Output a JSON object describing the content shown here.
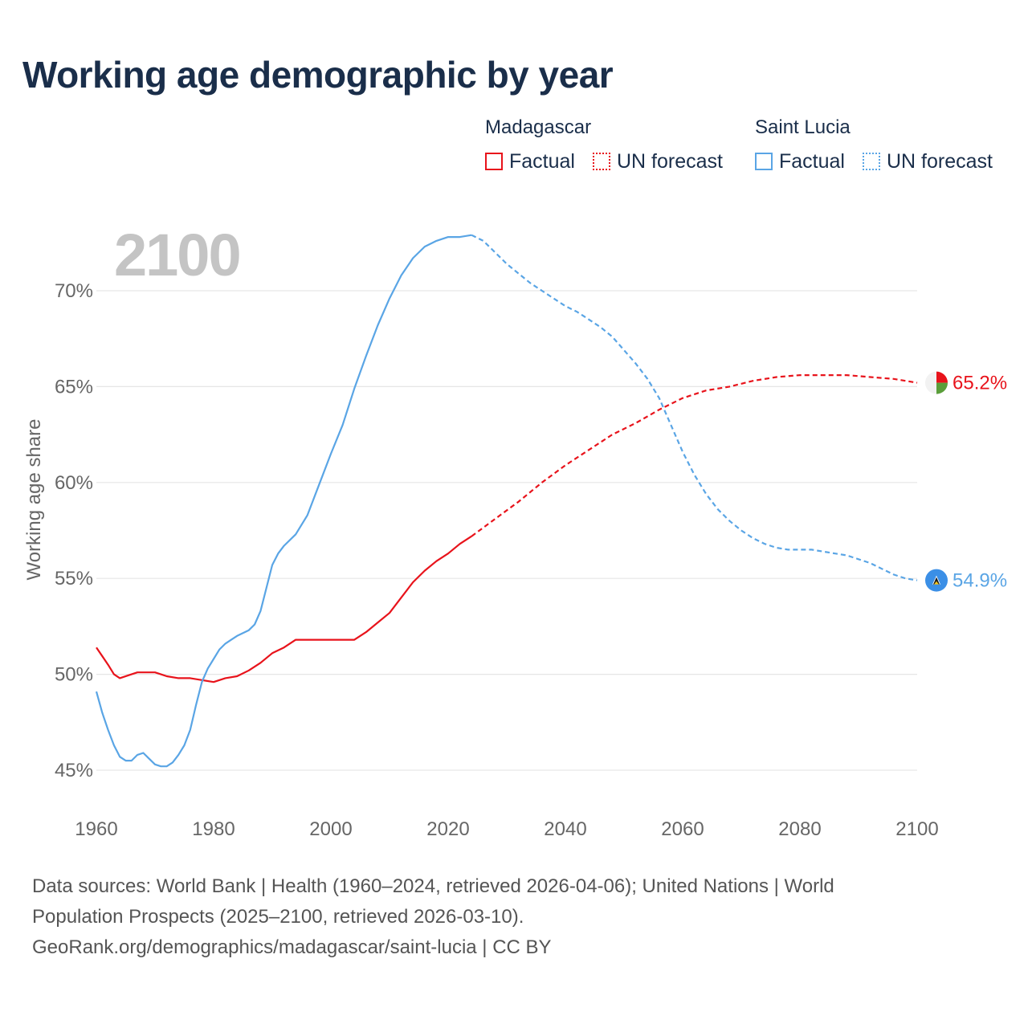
{
  "title": "Working age demographic by year",
  "legend": {
    "groups": [
      {
        "name": "Madagascar",
        "color": "#e8131b",
        "factual_label": "Factual",
        "forecast_label": "UN forecast"
      },
      {
        "name": "Saint Lucia",
        "color": "#5aa5e5",
        "factual_label": "Factual",
        "forecast_label": "UN forecast"
      }
    ]
  },
  "year_label": "2100",
  "chart_data": {
    "type": "line",
    "title": "Working age demographic by year",
    "xlabel": "",
    "ylabel": "Working age share",
    "xlim": [
      1960,
      2100
    ],
    "ylim": [
      45,
      72
    ],
    "x_ticks": [
      1960,
      1980,
      2000,
      2020,
      2040,
      2060,
      2080,
      2100
    ],
    "x_tick_labels": [
      "1960",
      "1980",
      "2000",
      "2020",
      "2040",
      "2060",
      "2080",
      "2100"
    ],
    "y_ticks": [
      45,
      50,
      55,
      60,
      65,
      70
    ],
    "y_tick_labels": [
      "45%",
      "50%",
      "55%",
      "60%",
      "65%",
      "70%"
    ],
    "forecast_start": 2024,
    "series": [
      {
        "name": "Madagascar",
        "color": "#e8131b",
        "end_label": "65.2%",
        "factual": {
          "x": [
            1960,
            1962,
            1963,
            1964,
            1966,
            1967,
            1970,
            1971,
            1972,
            1974,
            1976,
            1978,
            1980,
            1982,
            1984,
            1986,
            1988,
            1990,
            1992,
            1994,
            1996,
            1998,
            2000,
            2002,
            2004,
            2006,
            2008,
            2010,
            2012,
            2014,
            2016,
            2018,
            2020,
            2022,
            2024
          ],
          "y": [
            51.4,
            50.5,
            50.0,
            49.8,
            50.0,
            50.1,
            50.1,
            50.0,
            49.9,
            49.8,
            49.8,
            49.7,
            49.6,
            49.8,
            49.9,
            50.2,
            50.6,
            51.1,
            51.4,
            51.8,
            51.8,
            51.8,
            51.8,
            51.8,
            51.8,
            52.2,
            52.7,
            53.2,
            54.0,
            54.8,
            55.4,
            55.9,
            56.3,
            56.8,
            57.2
          ]
        },
        "forecast": {
          "x": [
            2024,
            2028,
            2032,
            2036,
            2040,
            2044,
            2048,
            2052,
            2056,
            2060,
            2064,
            2068,
            2072,
            2076,
            2080,
            2084,
            2088,
            2092,
            2096,
            2100
          ],
          "y": [
            57.2,
            58.1,
            59.0,
            60.0,
            60.9,
            61.7,
            62.5,
            63.1,
            63.8,
            64.4,
            64.8,
            65.0,
            65.3,
            65.5,
            65.6,
            65.6,
            65.6,
            65.5,
            65.4,
            65.2
          ]
        }
      },
      {
        "name": "Saint Lucia",
        "color": "#5aa5e5",
        "end_label": "54.9%",
        "factual": {
          "x": [
            1960,
            1961,
            1962,
            1963,
            1964,
            1965,
            1966,
            1967,
            1968,
            1969,
            1970,
            1971,
            1972,
            1973,
            1974,
            1975,
            1976,
            1977,
            1978,
            1979,
            1980,
            1981,
            1982,
            1983,
            1984,
            1986,
            1987,
            1988,
            1989,
            1990,
            1991,
            1992,
            1994,
            1996,
            1998,
            2000,
            2002,
            2004,
            2006,
            2008,
            2010,
            2012,
            2014,
            2016,
            2018,
            2020,
            2022,
            2024
          ],
          "y": [
            49.1,
            48.0,
            47.1,
            46.3,
            45.7,
            45.5,
            45.5,
            45.8,
            45.9,
            45.6,
            45.3,
            45.2,
            45.2,
            45.4,
            45.8,
            46.3,
            47.1,
            48.4,
            49.6,
            50.3,
            50.8,
            51.3,
            51.6,
            51.8,
            52.0,
            52.3,
            52.6,
            53.3,
            54.5,
            55.7,
            56.3,
            56.7,
            57.3,
            58.3,
            59.9,
            61.5,
            63.0,
            64.9,
            66.6,
            68.2,
            69.6,
            70.8,
            71.7,
            72.3,
            72.6,
            72.8,
            72.8,
            72.9
          ]
        },
        "forecast": {
          "x": [
            2024,
            2026,
            2028,
            2030,
            2032,
            2034,
            2036,
            2038,
            2040,
            2042,
            2044,
            2046,
            2048,
            2050,
            2052,
            2054,
            2056,
            2058,
            2060,
            2062,
            2064,
            2066,
            2068,
            2070,
            2072,
            2074,
            2076,
            2078,
            2080,
            2082,
            2084,
            2086,
            2088,
            2090,
            2092,
            2094,
            2096,
            2098,
            2100
          ],
          "y": [
            72.9,
            72.6,
            72.0,
            71.4,
            70.9,
            70.4,
            70.0,
            69.6,
            69.2,
            68.9,
            68.5,
            68.1,
            67.6,
            66.9,
            66.2,
            65.4,
            64.4,
            63.0,
            61.6,
            60.4,
            59.4,
            58.6,
            58.0,
            57.5,
            57.1,
            56.8,
            56.6,
            56.5,
            56.5,
            56.5,
            56.4,
            56.3,
            56.2,
            56.0,
            55.8,
            55.5,
            55.2,
            55.0,
            54.9
          ]
        }
      }
    ]
  },
  "footer": {
    "line1": "Data sources: World Bank | Health (1960–2024, retrieved 2026-04-06); United Nations | World",
    "line2": "Population Prospects (2025–2100, retrieved 2026-03-10).",
    "line3": "GeoRank.org/demographics/madagascar/saint-lucia | CC BY"
  }
}
